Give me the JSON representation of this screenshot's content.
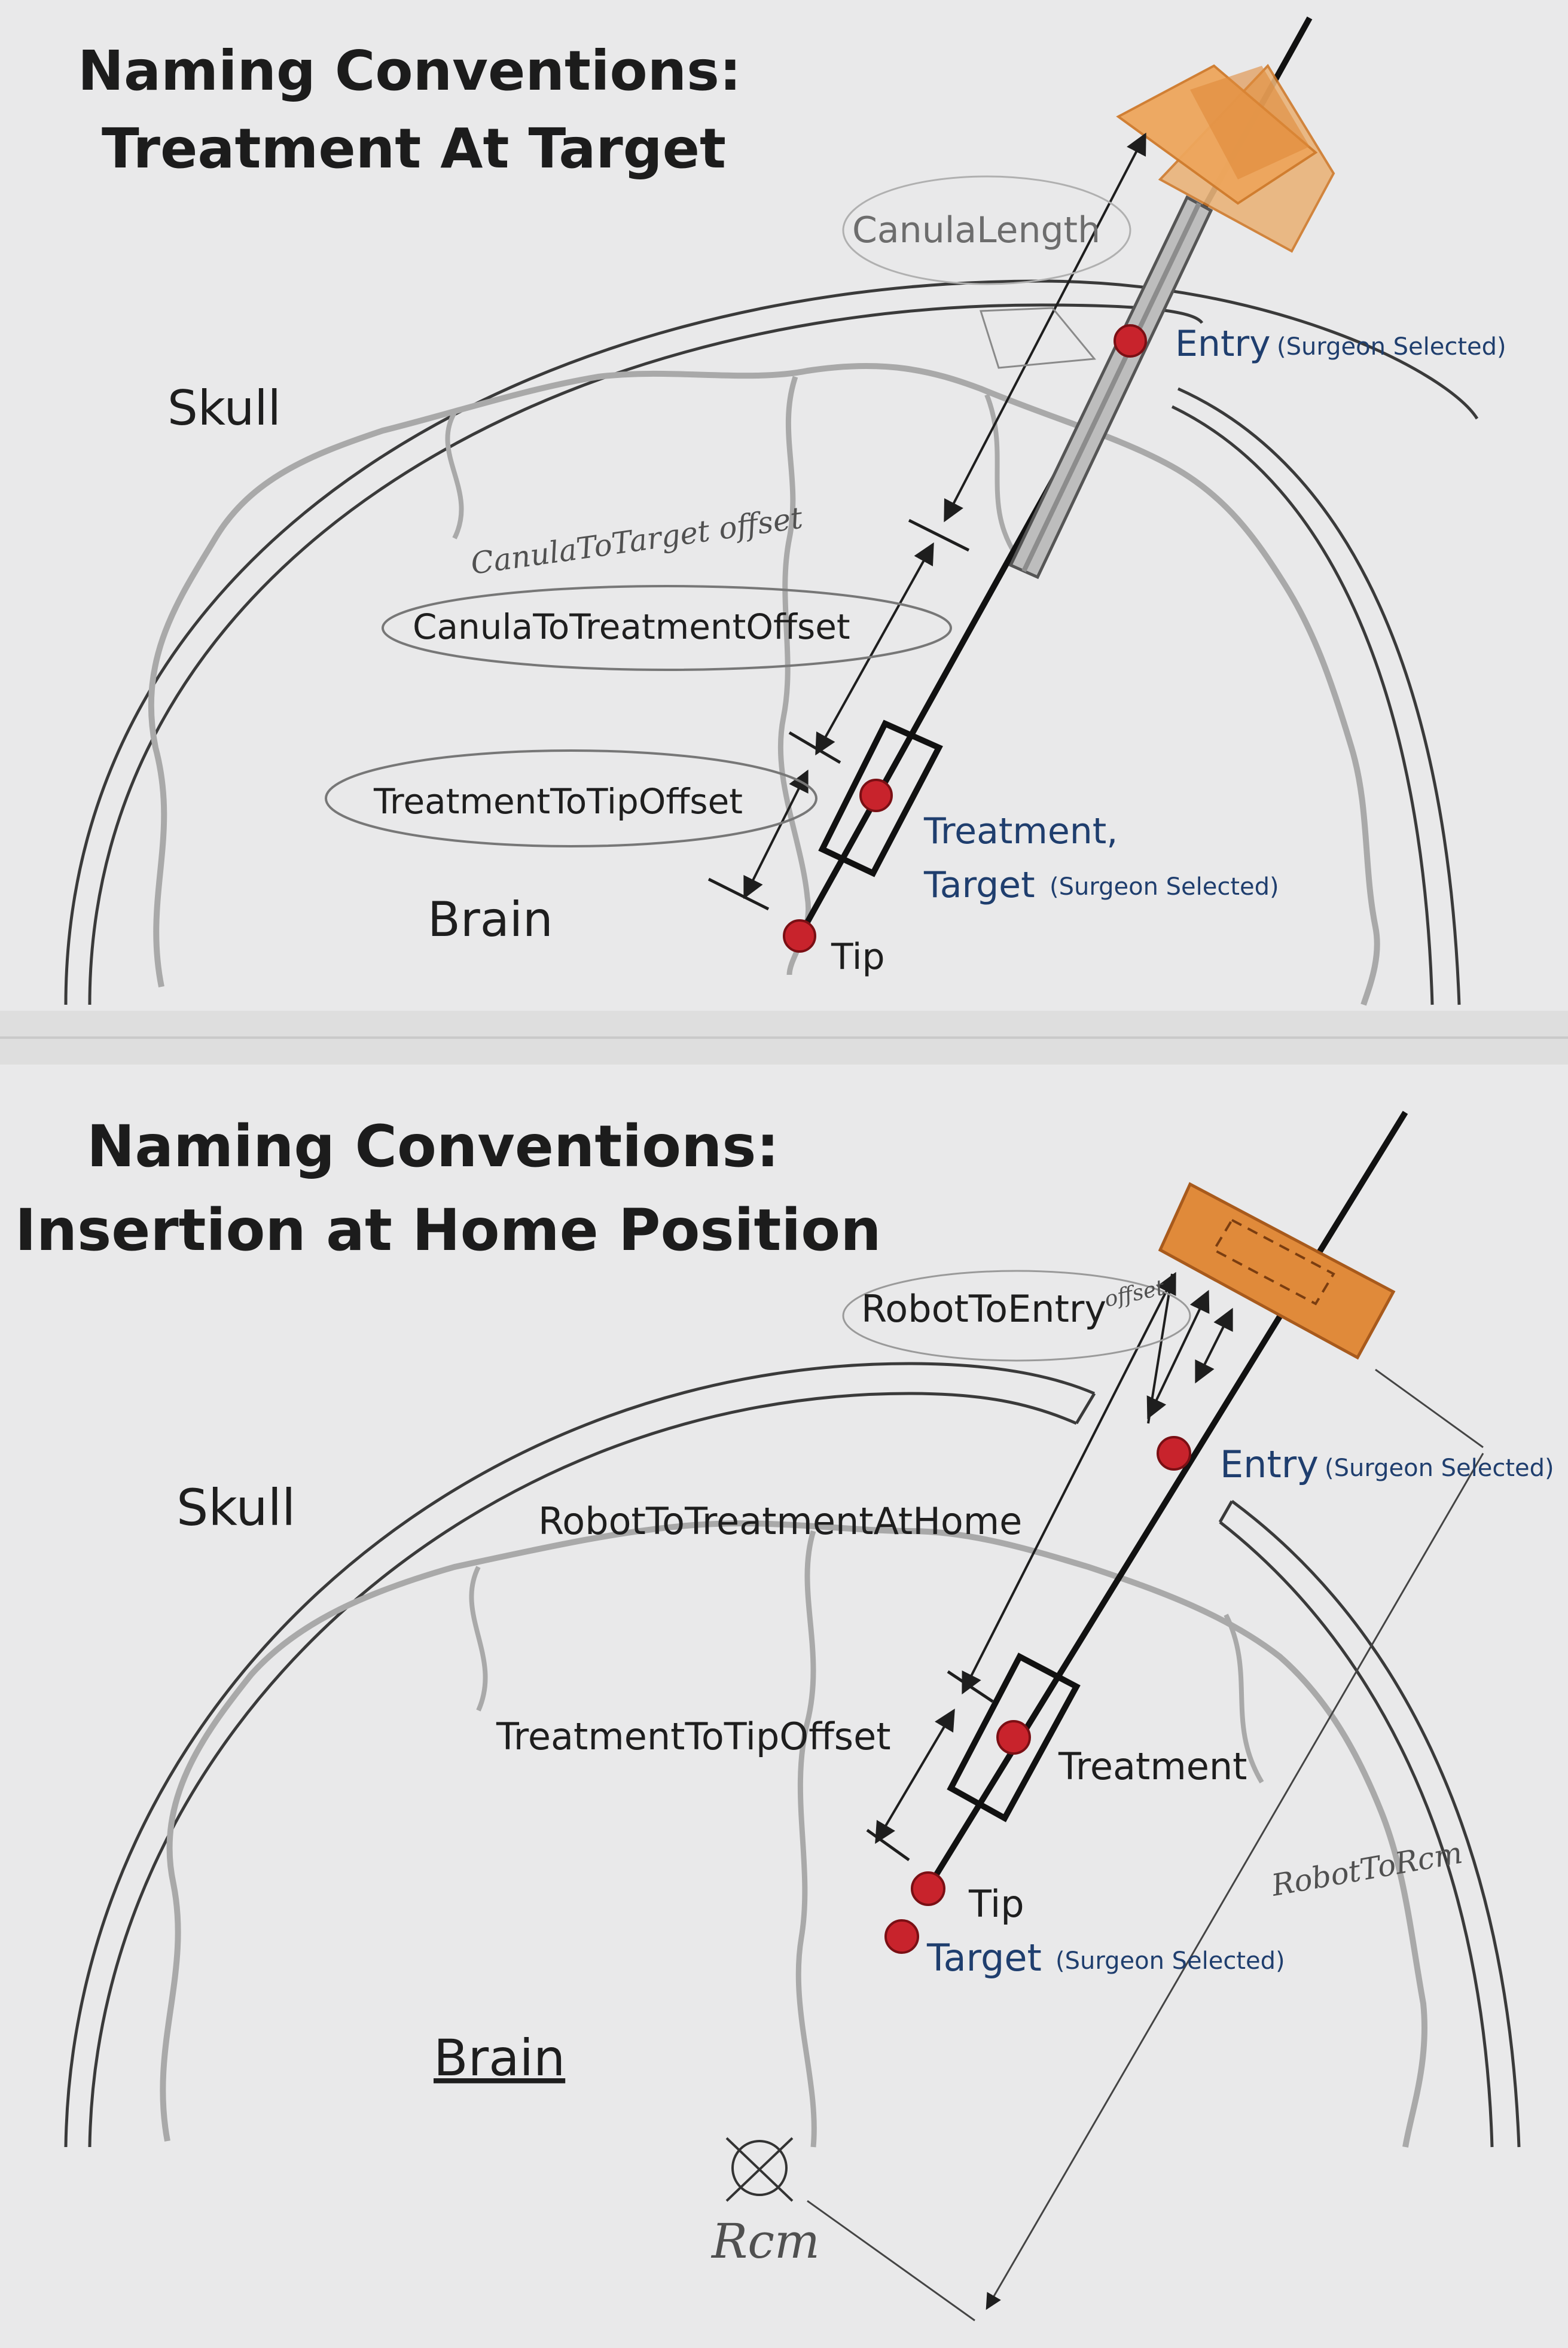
{
  "top": {
    "title_line1": "Naming Conventions:",
    "title_line2": "Treatment At Target",
    "skull": "Skull",
    "brain": "Brain",
    "canula_length": "CanulaLength",
    "entry": "Entry",
    "entry_note": "(Surgeon Selected)",
    "canula_to_target_handwritten": "CanulaToTarget offset",
    "canula_to_treatment_offset": "CanulaToTreatmentOffset",
    "treatment_to_tip_offset": "TreatmentToTipOffset",
    "treatment": "Treatment,",
    "target": "Target",
    "target_note": "(Surgeon Selected)",
    "tip": "Tip"
  },
  "bottom": {
    "title_line1": "Naming Conventions:",
    "title_line2": "Insertion at Home Position",
    "robot_to_entry": "RobotToEntry",
    "robot_to_entry_handwritten": "offset",
    "skull": "Skull",
    "entry": "Entry",
    "entry_note": "(Surgeon Selected)",
    "robot_to_treatment_at_home": "RobotToTreatmentAtHome",
    "treatment_to_tip_offset": "TreatmentToTipOffset",
    "treatment": "Treatment",
    "tip": "Tip",
    "target": "Target",
    "target_note": "(Surgeon Selected)",
    "brain": "Brain",
    "robot_to_rcm_handwritten": "RobotToRcm",
    "rcm_handwritten": "Rcm"
  },
  "colors": {
    "paper": "#e9e9ea",
    "robot_block": "#e08a3a",
    "robot_block_light": "#eea65c",
    "marker_red": "#c8232c",
    "entry_blue": "#1f3e6e",
    "skull_stroke": "#3a3a3a",
    "brain_stroke": "#a9a9a9"
  }
}
